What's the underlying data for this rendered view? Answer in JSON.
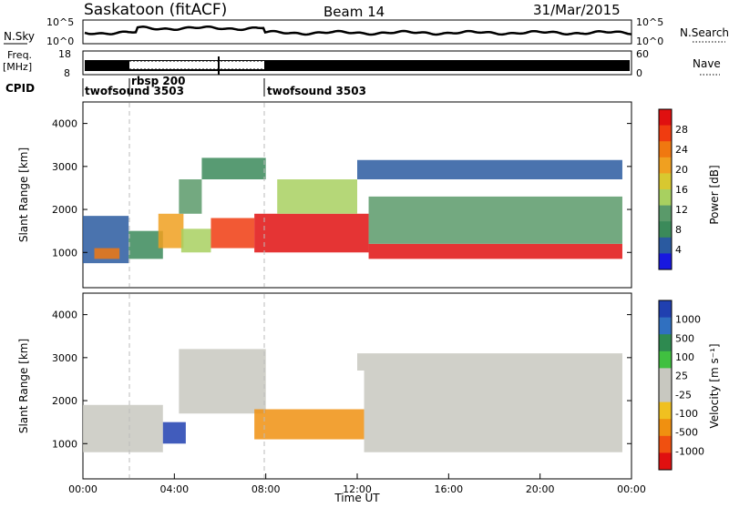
{
  "header": {
    "station": "Saskatoon (fitACF)",
    "beam": "Beam 14",
    "date": "31/Mar/2015"
  },
  "panels": {
    "nsky": {
      "label": "N.Sky",
      "left_ticks": [
        "10^5",
        "10^0"
      ],
      "right_ticks": [
        "10^5",
        "10^0"
      ],
      "right_label": "N.Search"
    },
    "freq": {
      "label_line1": "Freq.",
      "label_line2": "[MHz]",
      "left_ticks": [
        "18",
        "8"
      ],
      "right_ticks": [
        "60",
        "0"
      ],
      "right_label": "Nave"
    },
    "cpid": {
      "label": "CPID",
      "segments": [
        "twofsound 3503",
        "rbsp 200",
        "twofsound 3503"
      ]
    }
  },
  "colorbars": {
    "power": {
      "label": "Power [dB]",
      "ticks": [
        "28",
        "24",
        "20",
        "16",
        "12",
        "8",
        "4"
      ],
      "colors": [
        "#e01010",
        "#f03c10",
        "#f07810",
        "#f0a020",
        "#d8c830",
        "#a8d060",
        "#5a9a6a",
        "#3b8a5a",
        "#2a5aa0",
        "#1818e0"
      ]
    },
    "velocity": {
      "label": "Velocity [m s⁻¹]",
      "ticks": [
        "1000",
        "500",
        "100",
        "25",
        "-25",
        "-100",
        "-500",
        "-1000"
      ],
      "colors": [
        "#2040b0",
        "#3070c0",
        "#2e8a50",
        "#40c040",
        "#c8c8c0",
        "#c8c8c0",
        "#f0c020",
        "#f09010",
        "#f05010",
        "#e01010"
      ]
    }
  },
  "chart_data": [
    {
      "type": "heatmap",
      "title": "Power",
      "ylabel": "Slant Range [km]",
      "ylim": [
        180,
        4500
      ],
      "yticks": [
        1000,
        2000,
        3000,
        4000
      ],
      "xlim": [
        0,
        24
      ],
      "grid": false,
      "bands": [
        {
          "t0": 0.0,
          "t1": 2.0,
          "lo": 750,
          "hi": 1850,
          "color": "#2a5aa0"
        },
        {
          "t0": 0.5,
          "t1": 1.6,
          "lo": 850,
          "hi": 1100,
          "color": "#f07810"
        },
        {
          "t0": 2.0,
          "t1": 3.5,
          "lo": 850,
          "hi": 1500,
          "color": "#3b8a5a"
        },
        {
          "t0": 3.3,
          "t1": 4.4,
          "lo": 1100,
          "hi": 1900,
          "color": "#f0a020"
        },
        {
          "t0": 4.2,
          "t1": 5.2,
          "lo": 1900,
          "hi": 2700,
          "color": "#5a9a6a"
        },
        {
          "t0": 5.2,
          "t1": 8.0,
          "lo": 2700,
          "hi": 3200,
          "color": "#3b8a5a"
        },
        {
          "t0": 4.3,
          "t1": 5.6,
          "lo": 1000,
          "hi": 1550,
          "color": "#a8d060"
        },
        {
          "t0": 5.6,
          "t1": 7.5,
          "lo": 1100,
          "hi": 1800,
          "color": "#f03c10"
        },
        {
          "t0": 7.5,
          "t1": 12.5,
          "lo": 1000,
          "hi": 1900,
          "color": "#e01010"
        },
        {
          "t0": 8.5,
          "t1": 12.0,
          "lo": 1900,
          "hi": 2700,
          "color": "#a8d060"
        },
        {
          "t0": 12.5,
          "t1": 23.6,
          "lo": 850,
          "hi": 1200,
          "color": "#e01010"
        },
        {
          "t0": 12.5,
          "t1": 23.6,
          "lo": 1200,
          "hi": 2300,
          "color": "#5a9a6a"
        },
        {
          "t0": 12.0,
          "t1": 23.6,
          "lo": 2700,
          "hi": 3150,
          "color": "#2a5aa0"
        }
      ]
    },
    {
      "type": "heatmap",
      "title": "Velocity",
      "ylabel": "Slant Range [km]",
      "xlabel": "Time UT",
      "ylim": [
        180,
        4500
      ],
      "yticks": [
        1000,
        2000,
        3000,
        4000
      ],
      "xlim": [
        0,
        24
      ],
      "xticks": [
        "00:00",
        "04:00",
        "08:00",
        "12:00",
        "16:00",
        "20:00",
        "00:00"
      ],
      "grid": false,
      "bands": [
        {
          "t0": 0.0,
          "t1": 3.5,
          "lo": 800,
          "hi": 1900,
          "color": "#c8c8c0"
        },
        {
          "t0": 3.5,
          "t1": 4.5,
          "lo": 1000,
          "hi": 1500,
          "color": "#2040b0"
        },
        {
          "t0": 4.2,
          "t1": 8.0,
          "lo": 1700,
          "hi": 3200,
          "color": "#c8c8c0"
        },
        {
          "t0": 7.5,
          "t1": 12.3,
          "lo": 1100,
          "hi": 1800,
          "color": "#f09010"
        },
        {
          "t0": 12.3,
          "t1": 23.6,
          "lo": 800,
          "hi": 2700,
          "color": "#c8c8c0"
        },
        {
          "t0": 12.0,
          "t1": 23.6,
          "lo": 2700,
          "hi": 3100,
          "color": "#c8c8c0"
        }
      ]
    }
  ]
}
